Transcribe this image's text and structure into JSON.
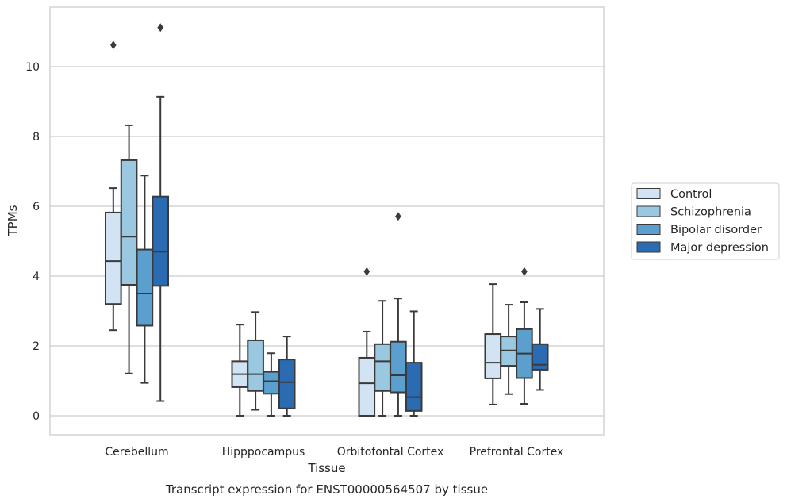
{
  "chart_data": {
    "type": "box",
    "title": "",
    "caption": "Transcript expression for ENST00000564507 by tissue",
    "xlabel": "Tissue",
    "ylabel": "TPMs",
    "ylim": [
      -0.5,
      11.7
    ],
    "yticks": [
      0,
      2,
      4,
      6,
      8,
      10
    ],
    "grid": "horizontal",
    "legend_position": "right",
    "categories": [
      "Cerebellum",
      "Hipppocampus",
      "Orbitofontal Cortex",
      "Prefrontal Cortex"
    ],
    "series": [
      {
        "name": "Control",
        "color": "#d2e3f3",
        "boxes": [
          {
            "whisker_low": 2.45,
            "q1": 3.2,
            "median": 4.43,
            "q3": 5.82,
            "whisker_high": 6.52,
            "outliers": [
              10.62
            ]
          },
          {
            "whisker_low": 0.0,
            "q1": 0.82,
            "median": 1.19,
            "q3": 1.56,
            "whisker_high": 2.61,
            "outliers": []
          },
          {
            "whisker_low": 0.0,
            "q1": 0.0,
            "median": 0.93,
            "q3": 1.66,
            "whisker_high": 2.41,
            "outliers": [
              4.13
            ]
          },
          {
            "whisker_low": 0.32,
            "q1": 1.07,
            "median": 1.52,
            "q3": 2.34,
            "whisker_high": 3.77,
            "outliers": []
          }
        ]
      },
      {
        "name": "Schizophrenia",
        "color": "#9ac8e0",
        "boxes": [
          {
            "whisker_low": 1.21,
            "q1": 3.75,
            "median": 5.13,
            "q3": 7.32,
            "whisker_high": 8.32,
            "outliers": []
          },
          {
            "whisker_low": 0.17,
            "q1": 0.71,
            "median": 1.19,
            "q3": 2.16,
            "whisker_high": 2.97,
            "outliers": []
          },
          {
            "whisker_low": 0.0,
            "q1": 0.71,
            "median": 1.56,
            "q3": 2.05,
            "whisker_high": 3.29,
            "outliers": []
          },
          {
            "whisker_low": 0.62,
            "q1": 1.43,
            "median": 1.87,
            "q3": 2.27,
            "whisker_high": 3.18,
            "outliers": []
          }
        ]
      },
      {
        "name": "Bipolar disorder",
        "color": "#5a9fcd",
        "boxes": [
          {
            "whisker_low": 0.94,
            "q1": 2.58,
            "median": 3.5,
            "q3": 4.76,
            "whisker_high": 6.88,
            "outliers": []
          },
          {
            "whisker_low": 0.0,
            "q1": 0.63,
            "median": 0.99,
            "q3": 1.26,
            "whisker_high": 1.79,
            "outliers": []
          },
          {
            "whisker_low": 0.0,
            "q1": 0.67,
            "median": 1.16,
            "q3": 2.12,
            "whisker_high": 3.36,
            "outliers": [
              5.71
            ]
          },
          {
            "whisker_low": 0.34,
            "q1": 1.08,
            "median": 1.78,
            "q3": 2.48,
            "whisker_high": 3.25,
            "outliers": [
              4.13
            ]
          }
        ]
      },
      {
        "name": "Major depression",
        "color": "#2a6bb1",
        "boxes": [
          {
            "whisker_low": 0.42,
            "q1": 3.72,
            "median": 4.7,
            "q3": 6.28,
            "whisker_high": 9.14,
            "outliers": [
              11.12
            ]
          },
          {
            "whisker_low": 0.0,
            "q1": 0.21,
            "median": 0.96,
            "q3": 1.61,
            "whisker_high": 2.27,
            "outliers": []
          },
          {
            "whisker_low": 0.0,
            "q1": 0.14,
            "median": 0.53,
            "q3": 1.52,
            "whisker_high": 2.99,
            "outliers": []
          },
          {
            "whisker_low": 0.74,
            "q1": 1.32,
            "median": 1.46,
            "q3": 2.05,
            "whisker_high": 3.06,
            "outliers": []
          }
        ]
      }
    ]
  }
}
